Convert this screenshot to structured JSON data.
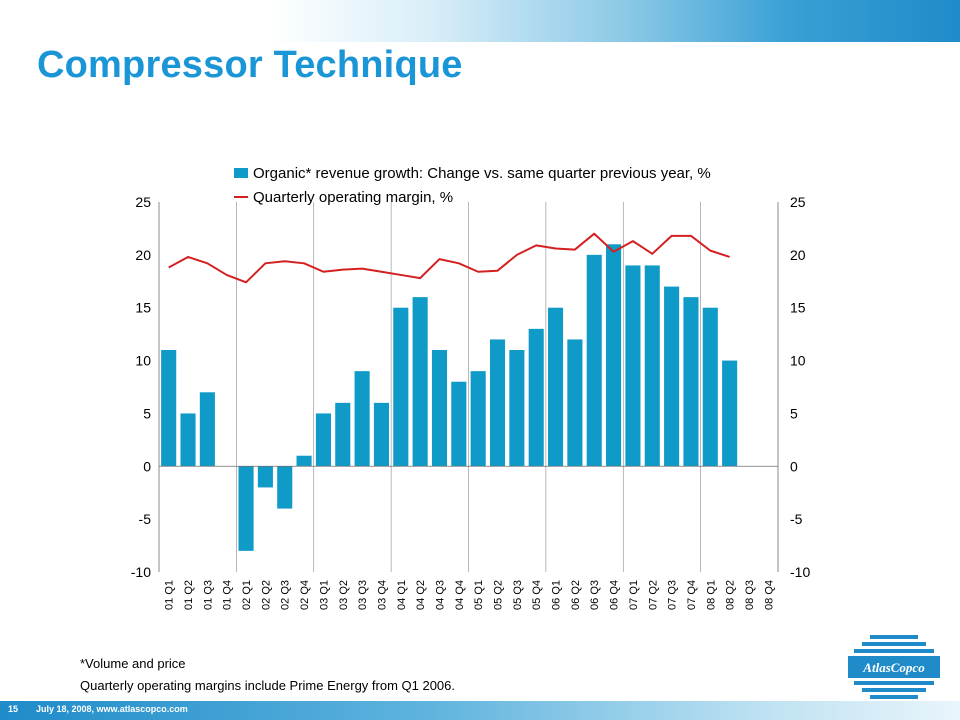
{
  "slide": {
    "title": "Compressor Technique",
    "footnote_1": "*Volume and price",
    "footnote_2": "Quarterly operating margins include Prime Energy from Q1 2006.",
    "page_number": "15",
    "footer_text": "July 18, 2008, www.atlascopco.com",
    "logo_text": "AtlasCopco"
  },
  "colors": {
    "title": "#1a95d6",
    "bar": "#109ac8",
    "line": "#d42020",
    "brand_blue": "#1f8bc9"
  },
  "icons": {
    "logo": "atlas-copco-logo"
  },
  "chart_data": {
    "type": "bar",
    "categories": [
      "01 Q1",
      "01 Q2",
      "01 Q3",
      "01 Q4",
      "02 Q1",
      "02 Q2",
      "02 Q3",
      "02 Q4",
      "03 Q1",
      "03 Q2",
      "03 Q3",
      "03 Q4",
      "04 Q1",
      "04 Q2",
      "04 Q3",
      "04 Q4",
      "05 Q1",
      "05 Q2",
      "05 Q3",
      "05 Q4",
      "06 Q1",
      "06 Q2",
      "06 Q3",
      "06 Q4",
      "07 Q1",
      "07 Q2",
      "07 Q3",
      "07 Q4",
      "08 Q1",
      "08 Q2",
      "08 Q3",
      "08 Q4"
    ],
    "series": [
      {
        "name": "Organic* revenue growth: Change vs. same quarter previous year, %",
        "type": "bar",
        "axis": "left",
        "values": [
          11,
          5,
          7,
          null,
          -8,
          -2,
          -4,
          1,
          5,
          6,
          9,
          6,
          15,
          16,
          11,
          8,
          9,
          12,
          11,
          13,
          15,
          12,
          20,
          21,
          19,
          19,
          17,
          16,
          15,
          10,
          null,
          null
        ]
      },
      {
        "name": "Quarterly operating margin, %",
        "type": "line",
        "axis": "right",
        "values": [
          18.8,
          19.8,
          19.2,
          18.1,
          17.4,
          19.2,
          19.4,
          19.2,
          18.4,
          18.6,
          18.7,
          18.4,
          18.1,
          17.8,
          19.6,
          19.2,
          18.4,
          18.5,
          20.0,
          20.9,
          20.6,
          20.5,
          22.0,
          20.3,
          21.3,
          20.1,
          21.8,
          21.8,
          20.4,
          19.8,
          null,
          null
        ]
      }
    ],
    "y_left": {
      "min": -10,
      "max": 25,
      "ticks": [
        25,
        20,
        15,
        10,
        5,
        0,
        -5,
        -10
      ]
    },
    "y_right": {
      "min": -10,
      "max": 25,
      "ticks": [
        25,
        20,
        15,
        10,
        5,
        0,
        -5,
        -10
      ]
    },
    "grid": "vertical every 4 quarters",
    "legend_position": "top"
  }
}
